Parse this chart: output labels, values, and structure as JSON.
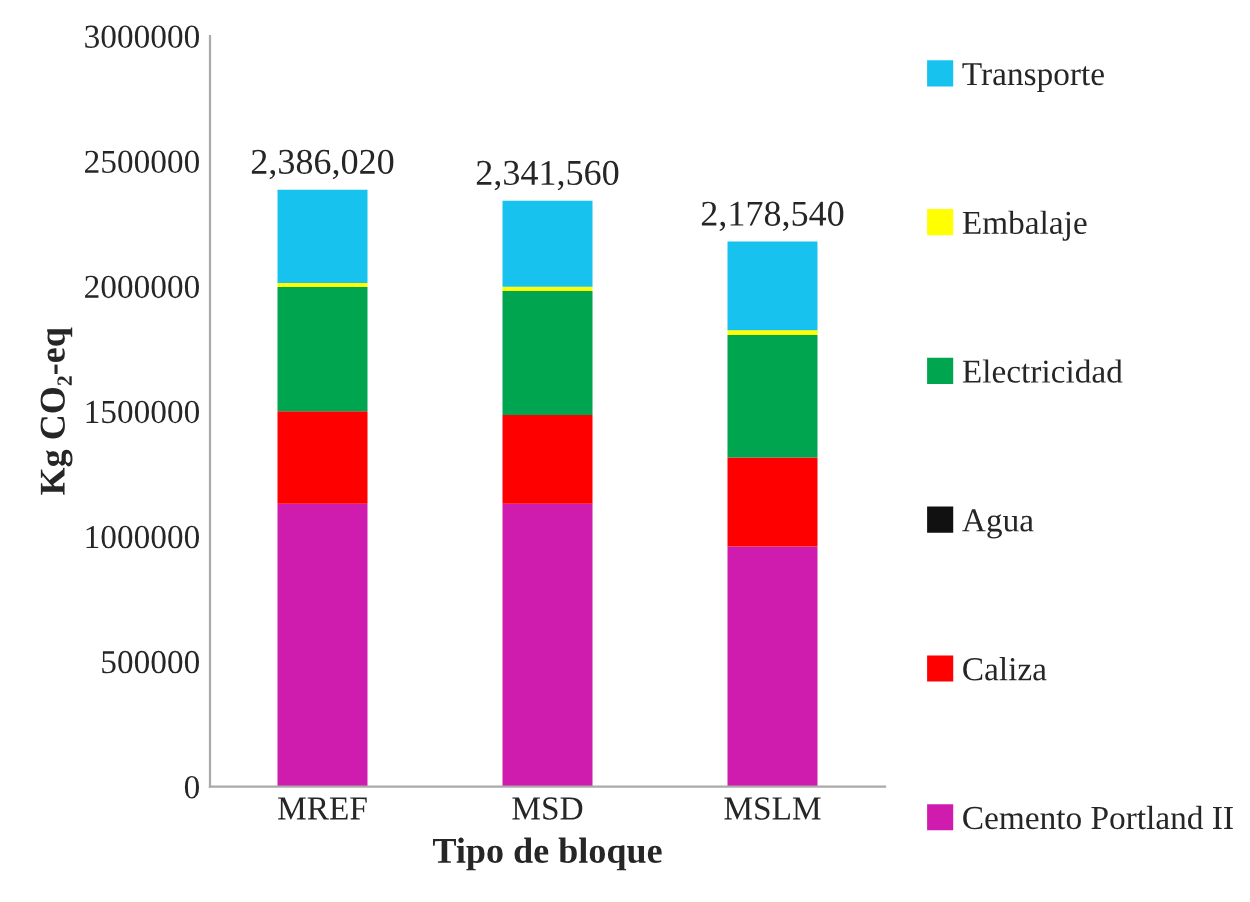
{
  "chart_data": {
    "type": "bar",
    "stacked": true,
    "xlabel": "Tipo de bloque",
    "ylabel": "Kg CO₂-eq",
    "categories": [
      "MREF",
      "MSD",
      "MSLM"
    ],
    "series": [
      {
        "name": "Cemento Portland II",
        "color": "#d01cae",
        "values": [
          1130000,
          1130000,
          960000
        ]
      },
      {
        "name": "Caliza",
        "color": "#ff0000",
        "values": [
          370000,
          355000,
          355000
        ]
      },
      {
        "name": "Agua",
        "color": "#111111",
        "values": [
          null,
          null,
          null
        ]
      },
      {
        "name": "Electricidad",
        "color": "#00a550",
        "values": [
          497000,
          496000,
          490000
        ]
      },
      {
        "name": "Embalaje",
        "color": "#ffff00",
        "values": [
          16000,
          17000,
          19000
        ]
      },
      {
        "name": "Transporte",
        "color": "#17c3ee",
        "values": [
          373020,
          343560,
          354540
        ]
      }
    ],
    "totals": [
      "2,386,020",
      "2,341,560",
      "2,178,540"
    ],
    "ylim": [
      0,
      3000000
    ],
    "yticks": [
      0,
      500000,
      1000000,
      1500000,
      2000000,
      2500000,
      3000000
    ],
    "grid": false,
    "legend": "right"
  }
}
